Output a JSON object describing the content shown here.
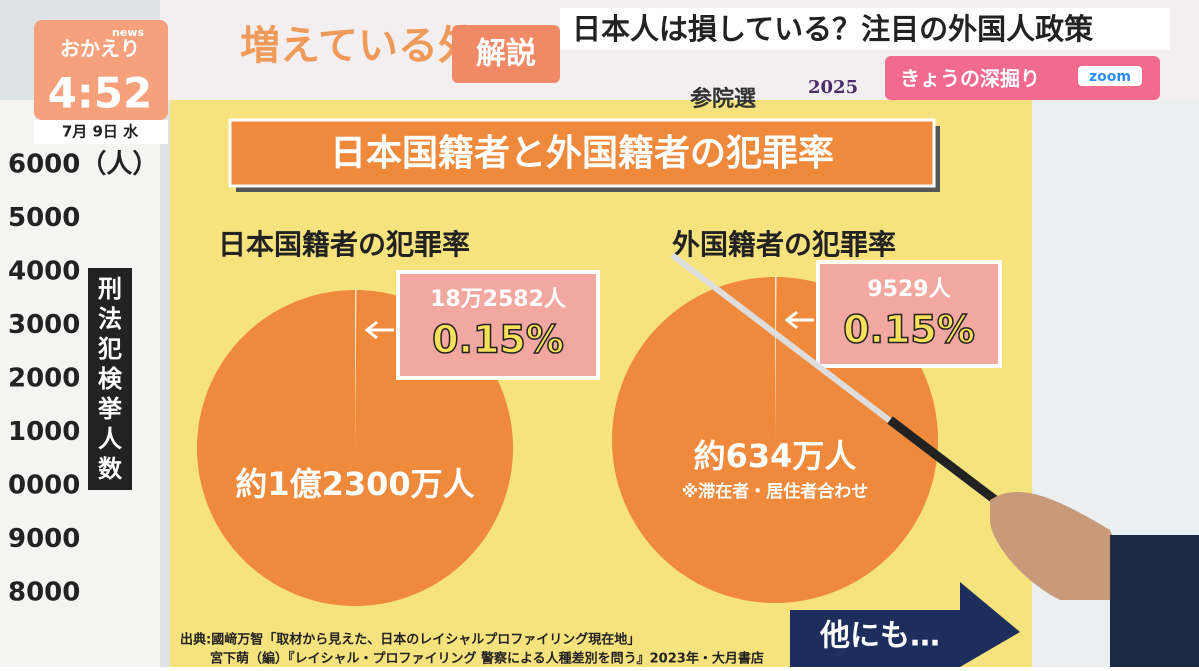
{
  "program": {
    "brand": "news",
    "name": "おかえり",
    "time": "4:52",
    "date": "7月 9日 水"
  },
  "header": {
    "topic_cut": "増えている外",
    "tag": "解説",
    "headline": "日本人は損している？注目の外国人政策",
    "election": "参院選",
    "year": "2025",
    "corner": "きょうの深掘り",
    "app": "zoom"
  },
  "side_board": {
    "labels": [
      "6000（人）",
      "5000",
      "4000",
      "3000",
      "2000",
      "1000",
      "0000",
      "9000",
      "8000"
    ],
    "caption": "刑法犯検挙人数"
  },
  "board": {
    "title": "日本国籍者と外国籍者の犯罪率",
    "more": "他にも…",
    "source": [
      "出典:國﨑万智「取材から見えた、日本のレイシャルプロファイリング現在地」",
      "宮下萌（編）『レイシャル・プロファイリング 警察による人種差別を問う』2023年・大月書店"
    ]
  },
  "chart_data": [
    {
      "type": "pie",
      "title": "日本国籍者の犯罪率",
      "values": [
        0.15,
        99.85
      ],
      "value_labels": [
        "0.15%",
        null
      ],
      "colors": [
        "#fbe7c6",
        "#ef8a3c"
      ],
      "annotations": {
        "count": "18万2582人",
        "population": "約1億2300万人"
      }
    },
    {
      "type": "pie",
      "title": "外国籍者の犯罪率",
      "values": [
        0.15,
        99.85
      ],
      "value_labels": [
        "0.15%",
        null
      ],
      "colors": [
        "#fbe7c6",
        "#ef8a3c"
      ],
      "annotations": {
        "count": "9529人",
        "population": "約634万人",
        "note": "※滞在者・居住者合わせ"
      }
    }
  ]
}
